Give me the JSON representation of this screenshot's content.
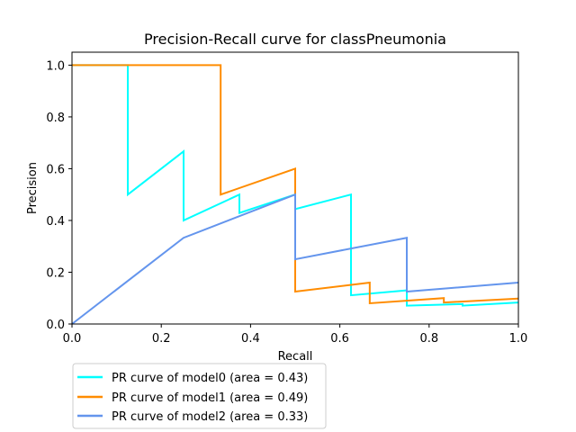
{
  "chart_data": {
    "type": "line",
    "title": "Precision-Recall curve for classPneumonia",
    "xlabel": "Recall",
    "ylabel": "Precision",
    "xlim": [
      0,
      1
    ],
    "ylim": [
      0,
      1.05
    ],
    "xticks": [
      0.0,
      0.2,
      0.4,
      0.6,
      0.8,
      1.0
    ],
    "yticks": [
      0.0,
      0.2,
      0.4,
      0.6,
      0.8,
      1.0
    ],
    "grid": false,
    "legend_position": "below-left",
    "series": [
      {
        "name": "PR curve of model0 (area = 0.43)",
        "color": "#00ffff",
        "x": [
          0.0,
          0.125,
          0.125,
          0.25,
          0.25,
          0.375,
          0.375,
          0.5,
          0.5,
          0.625,
          0.625,
          0.75,
          0.75,
          0.875,
          0.875,
          1.0
        ],
        "y": [
          1.0,
          1.0,
          0.5,
          0.667,
          0.4,
          0.5,
          0.429,
          0.5,
          0.444,
          0.5,
          0.111,
          0.13,
          0.071,
          0.077,
          0.071,
          0.083
        ]
      },
      {
        "name": "PR curve of model1 (area = 0.49)",
        "color": "#ff8c00",
        "x": [
          0.0,
          0.333,
          0.333,
          0.5,
          0.5,
          0.667,
          0.667,
          0.833,
          0.833,
          1.0
        ],
        "y": [
          1.0,
          1.0,
          0.5,
          0.6,
          0.125,
          0.16,
          0.08,
          0.1,
          0.083,
          0.098
        ]
      },
      {
        "name": "PR curve of model2 (area = 0.33)",
        "color": "#6495ed",
        "x": [
          0.0,
          0.25,
          0.5,
          0.5,
          0.75,
          0.75,
          1.0
        ],
        "y": [
          0.0,
          0.333,
          0.5,
          0.25,
          0.333,
          0.125,
          0.16
        ]
      }
    ]
  }
}
